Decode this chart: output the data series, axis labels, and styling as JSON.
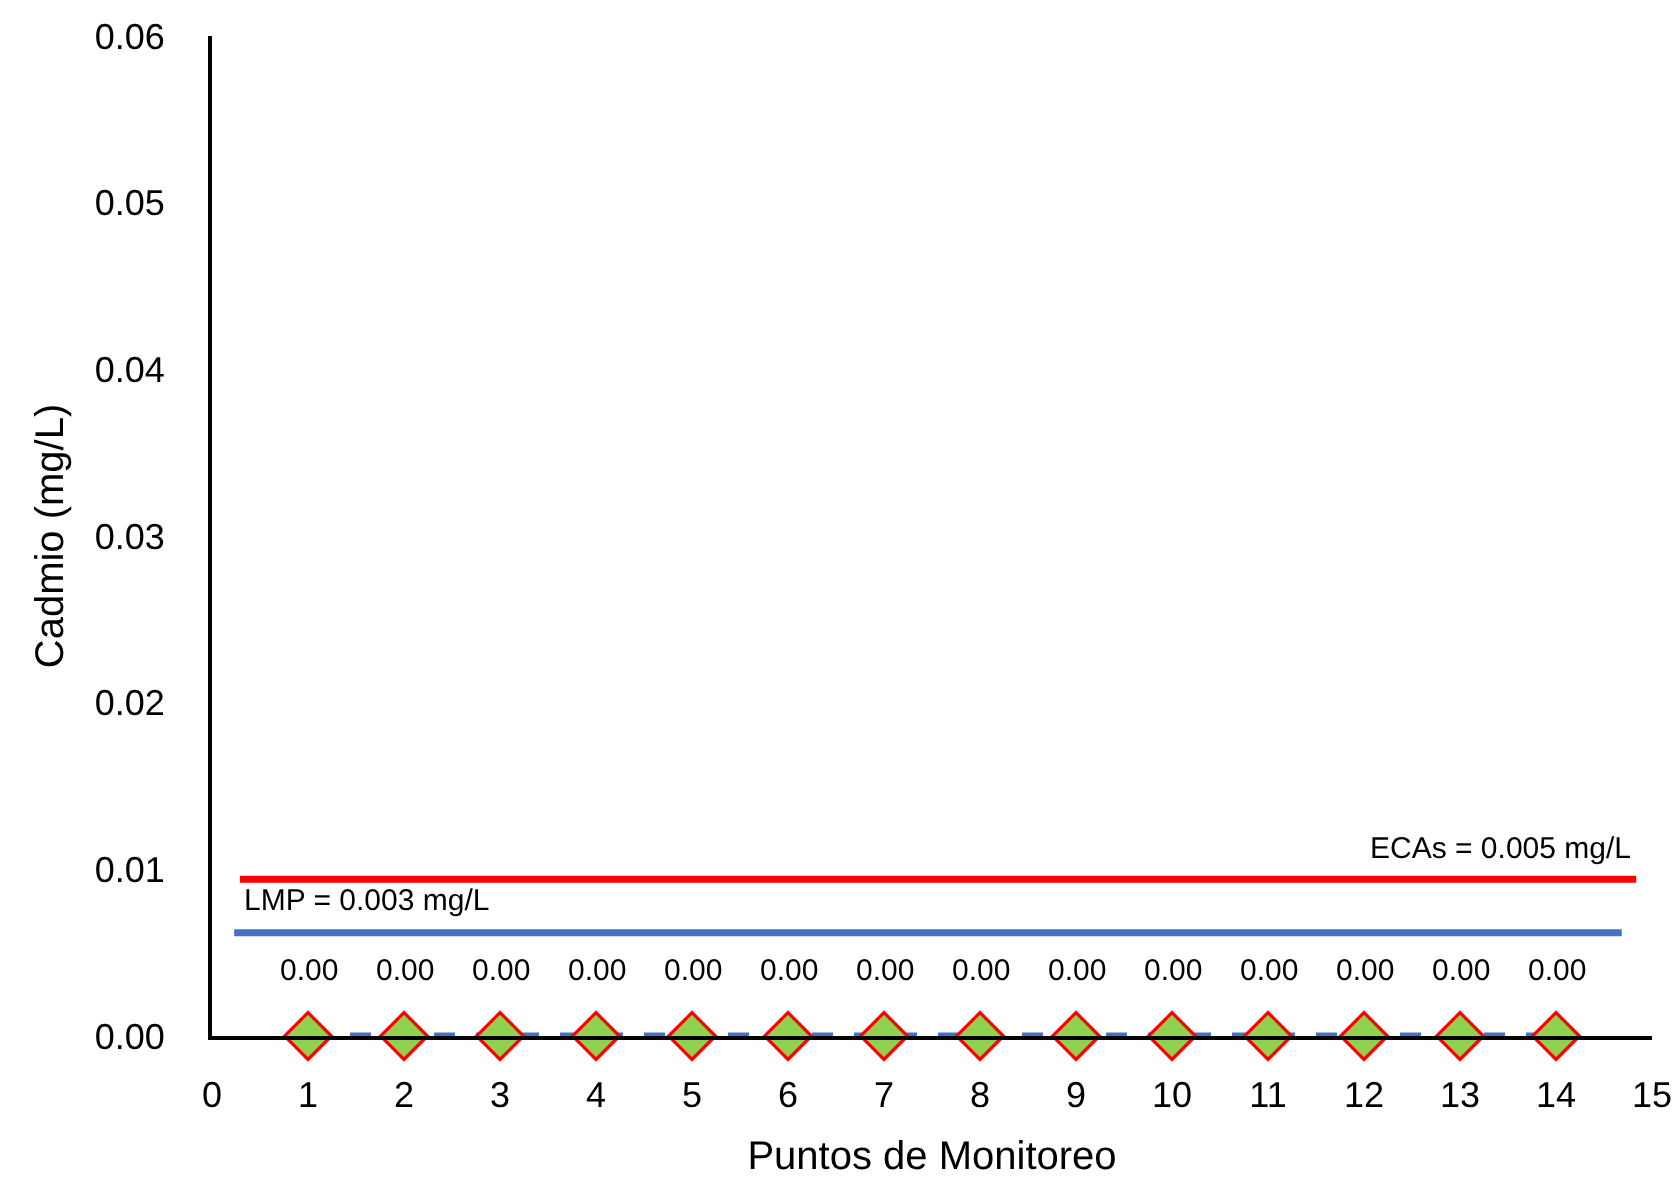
{
  "chart_data": {
    "type": "line",
    "xlabel": "Puntos de Monitoreo",
    "ylabel": "Cadmio (mg/L)",
    "x": [
      1,
      2,
      3,
      4,
      5,
      6,
      7,
      8,
      9,
      10,
      11,
      12,
      13,
      14
    ],
    "series": [
      {
        "color": "#4472c4",
        "colors": [
          "#92d050",
          "#92d050",
          "#92d050",
          "#92d050",
          "#92d050",
          "#92d050",
          "#92d050",
          "#92d050",
          "#92d050",
          "#92d050",
          "#92d050",
          "#92d050",
          "#92d050",
          "#92d050"
        ],
        "values": [
          0,
          0,
          0,
          0,
          0,
          0,
          0,
          0,
          0,
          0,
          0,
          0,
          0,
          0
        ],
        "value_labels": [
          "0.00",
          "0.00",
          "0.00",
          "0.00",
          "0.00",
          "0.00",
          "0.00",
          "0.00",
          "0.00",
          "0.00",
          "0.00",
          "0.00",
          "0.00",
          "0.00"
        ]
      }
    ],
    "xlim": [
      0,
      15
    ],
    "xticks": [
      0,
      1,
      2,
      3,
      4,
      5,
      6,
      7,
      8,
      9,
      10,
      11,
      12,
      13,
      14,
      15
    ],
    "ylim": [
      0,
      0.06
    ],
    "yticks": [
      {
        "value": 0,
        "label": "0.00"
      },
      0.01,
      0.02,
      0.03,
      0.04,
      0.05,
      0.06
    ],
    "ref_lines": [
      {
        "axis": "y",
        "value": 0.0094,
        "color": "#ff0000"
      },
      {
        "axis": "y",
        "value": 0.0062,
        "color": "#4472c4"
      }
    ],
    "annotations": [
      "ECAs = 0.005 mg/L",
      "LMP = 0.003 mg/L"
    ],
    "grid": false,
    "marker": "diamond",
    "line_style": "dashed"
  }
}
